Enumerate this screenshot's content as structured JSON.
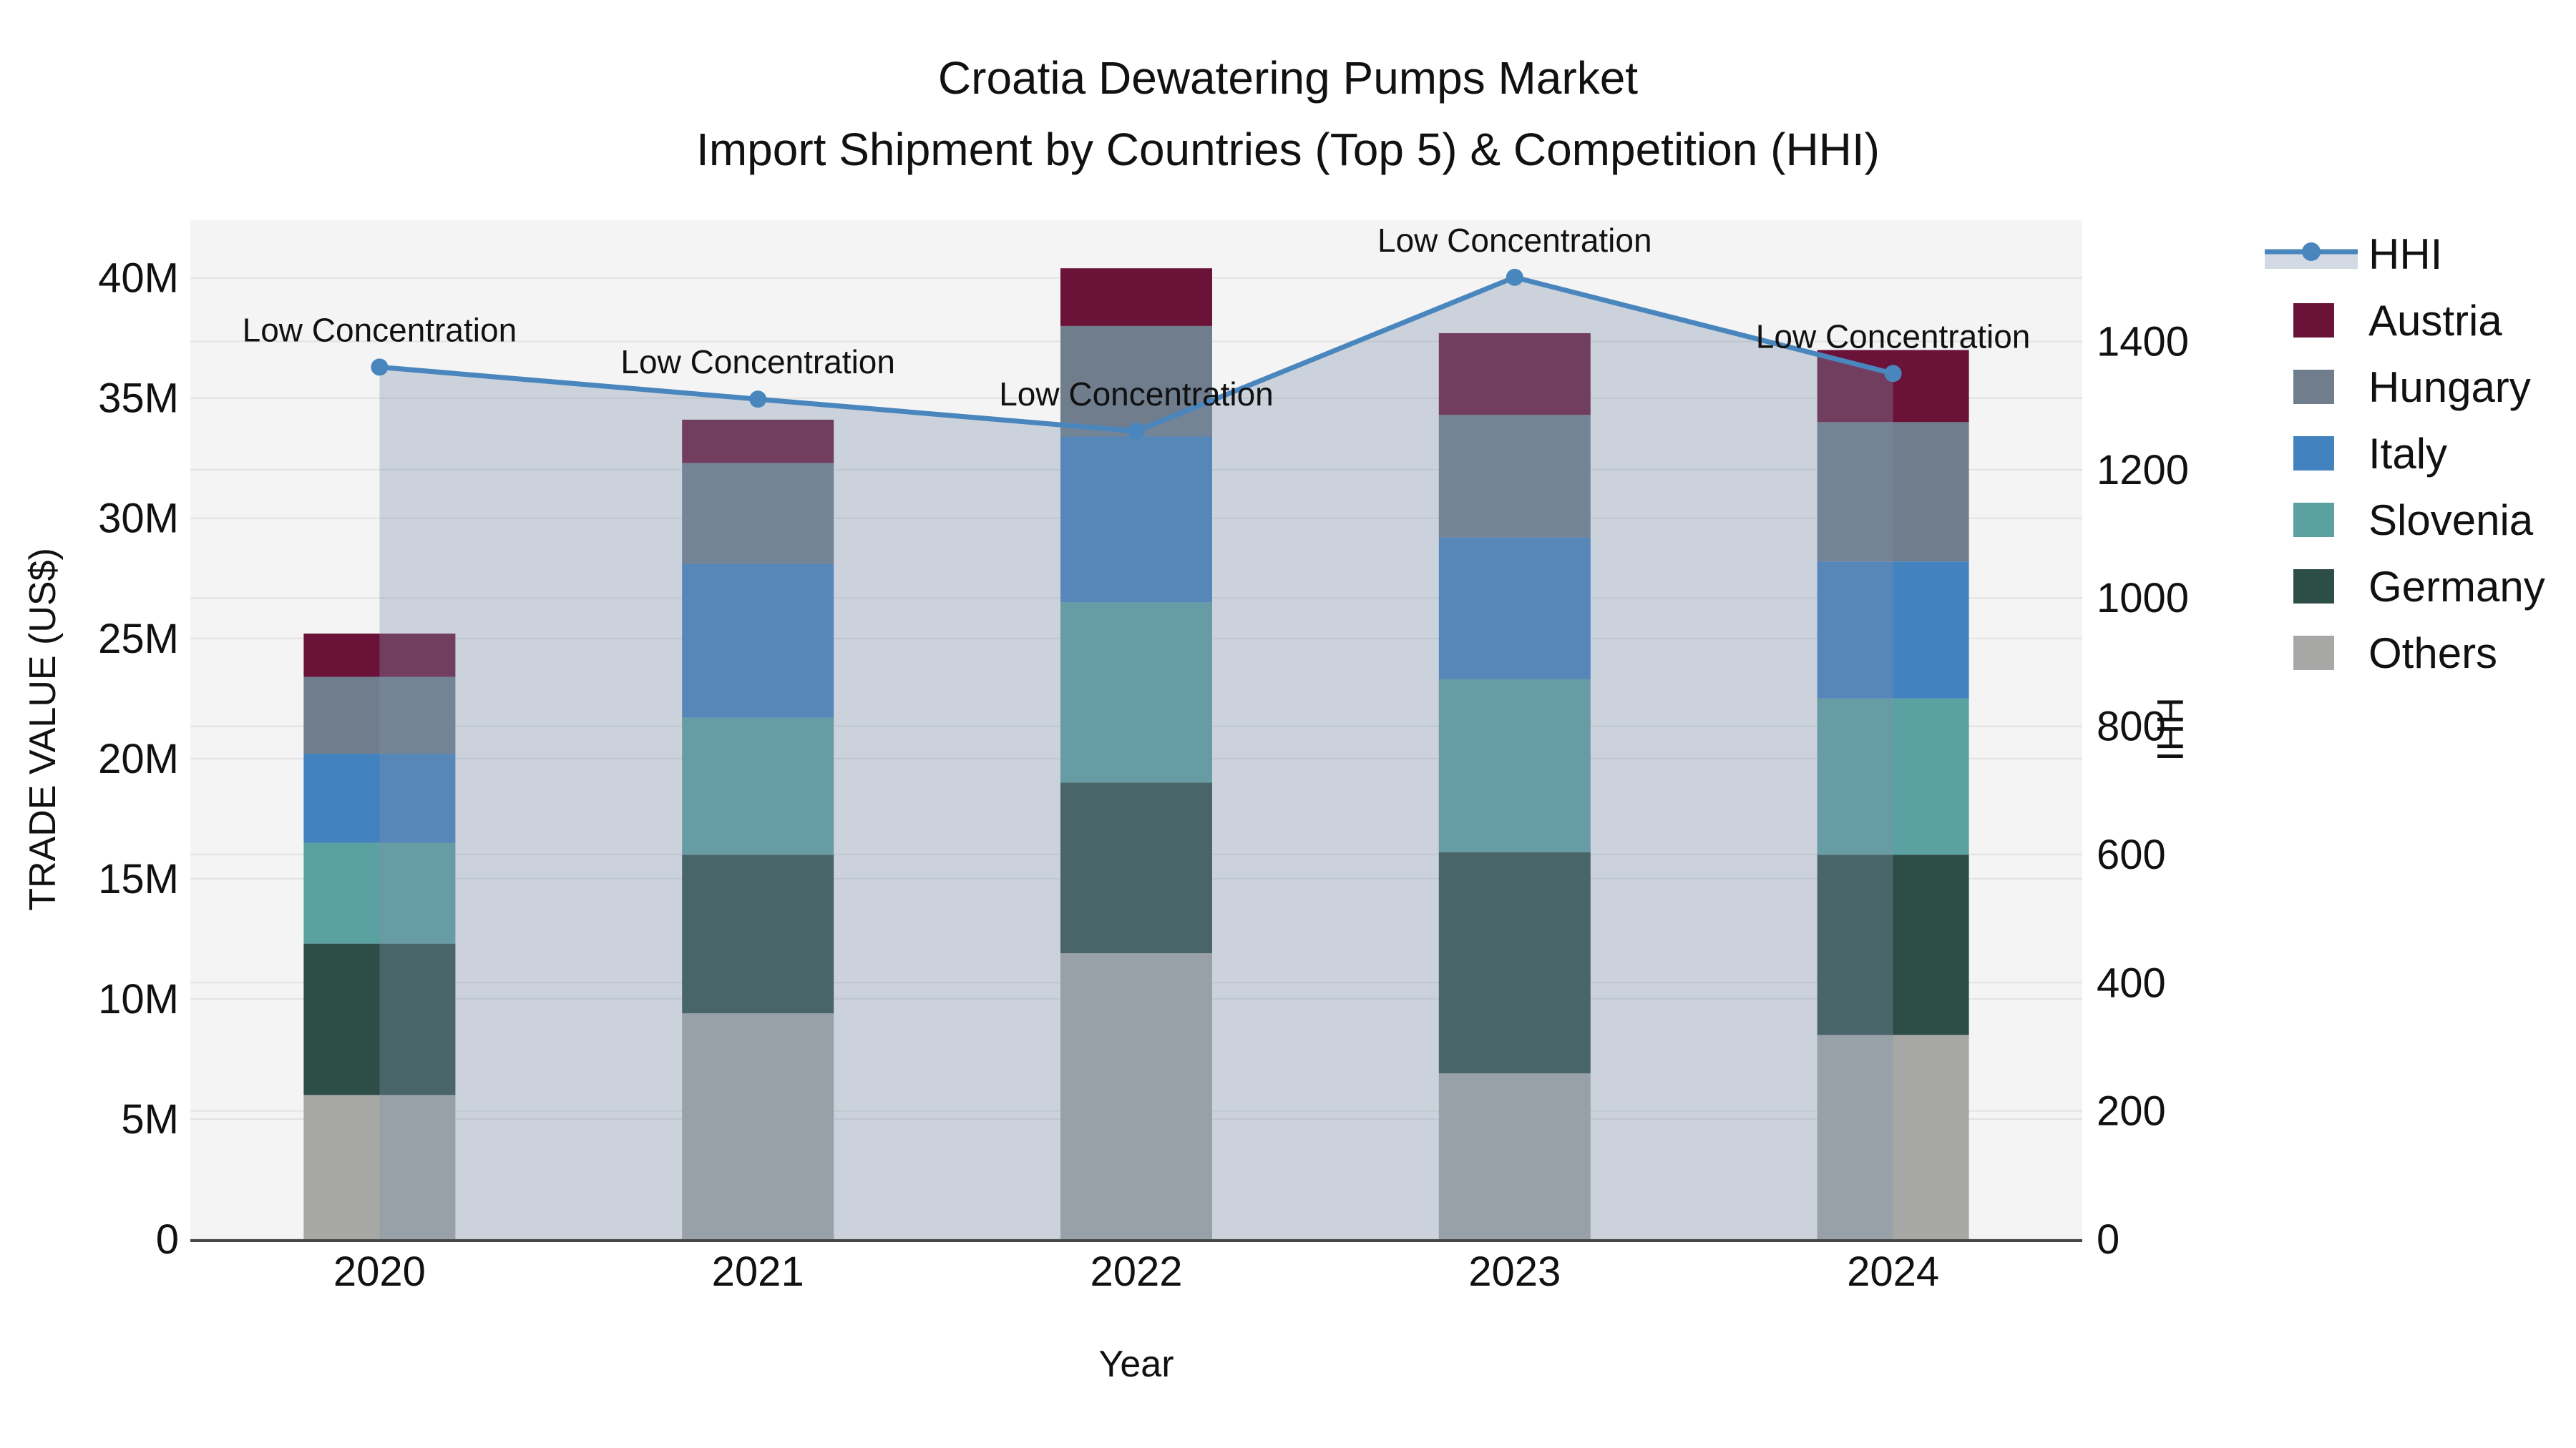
{
  "title": {
    "line1": "Croatia Dewatering Pumps Market",
    "line2": "Import Shipment by Countries (Top 5) & Competition (HHI)"
  },
  "axes": {
    "left": {
      "title": "TRADE VALUE (US$)",
      "tick_labels": [
        "0",
        "5M",
        "10M",
        "15M",
        "20M",
        "25M",
        "30M",
        "35M",
        "40M"
      ],
      "tick_values": [
        0,
        5,
        10,
        15,
        20,
        25,
        30,
        35,
        40
      ]
    },
    "right": {
      "title": "HHI",
      "tick_labels": [
        "0",
        "200",
        "400",
        "600",
        "800",
        "1000",
        "1200",
        "1400"
      ],
      "tick_values": [
        0,
        200,
        400,
        600,
        800,
        1000,
        1200,
        1400
      ]
    },
    "x": {
      "title": "Year",
      "categories": [
        "2020",
        "2021",
        "2022",
        "2023",
        "2024"
      ]
    }
  },
  "legend": {
    "items": [
      {
        "label": "HHI",
        "kind": "line",
        "color": "#4A86BE"
      },
      {
        "label": "Austria",
        "kind": "swatch",
        "color": "#6A1237"
      },
      {
        "label": "Hungary",
        "kind": "swatch",
        "color": "#6F7D8D"
      },
      {
        "label": "Italy",
        "kind": "swatch",
        "color": "#4182BF"
      },
      {
        "label": "Slovenia",
        "kind": "swatch",
        "color": "#5BA1A2"
      },
      {
        "label": "Germany",
        "kind": "swatch",
        "color": "#2D4D47"
      },
      {
        "label": "Others",
        "kind": "swatch",
        "color": "#A7A8A6"
      }
    ]
  },
  "annotations": {
    "text": "Low Concentration",
    "per_point": [
      "Low Concentration",
      "Low Concentration",
      "Low Concentration",
      "Low Concentration",
      "Low Concentration"
    ]
  },
  "colors": {
    "plot_bg": "#F4F4F4",
    "grid": "#E2E2E2",
    "axis_line": "#474747",
    "hhi_line": "#4A86BE",
    "hhi_area_fill": "rgba(125,145,172,0.35)",
    "text": "#111111"
  },
  "chart_data": {
    "type": "bar",
    "subtype": "stacked-bar-with-line-overlay",
    "title": "Croatia Dewatering Pumps Market — Import Shipment by Countries (Top 5) & Competition (HHI)",
    "xlabel": "Year",
    "ylabel_left": "TRADE VALUE (US$)",
    "ylabel_right": "HHI",
    "categories": [
      "2020",
      "2021",
      "2022",
      "2023",
      "2024"
    ],
    "unit": "million US$",
    "stack_order_bottom_to_top": [
      "Others",
      "Germany",
      "Slovenia",
      "Italy",
      "Hungary",
      "Austria"
    ],
    "series": [
      {
        "name": "Austria",
        "color": "#6A1237",
        "values": [
          1.8,
          1.8,
          2.4,
          3.4,
          3.0
        ]
      },
      {
        "name": "Hungary",
        "color": "#6F7D8D",
        "values": [
          3.2,
          4.2,
          4.6,
          5.1,
          5.8
        ]
      },
      {
        "name": "Italy",
        "color": "#4182BF",
        "values": [
          3.7,
          6.4,
          6.9,
          5.9,
          5.7
        ]
      },
      {
        "name": "Slovenia",
        "color": "#5BA1A2",
        "values": [
          4.2,
          5.7,
          7.5,
          7.2,
          6.5
        ]
      },
      {
        "name": "Germany",
        "color": "#2D4D47",
        "values": [
          6.3,
          6.6,
          7.1,
          9.2,
          7.5
        ]
      },
      {
        "name": "Others",
        "color": "#A7A8A6",
        "values": [
          6.0,
          9.4,
          11.9,
          6.9,
          8.5
        ]
      }
    ],
    "bar_totals": [
      25.2,
      34.1,
      40.4,
      37.7,
      37.0
    ],
    "line_series": {
      "name": "HHI",
      "color": "#4A86BE",
      "values": [
        1360,
        1310,
        1260,
        1500,
        1350
      ],
      "area_fill": true
    },
    "ylim_left": [
      0,
      42.4
    ],
    "ylim_right": [
      0,
      1589
    ],
    "grid": true,
    "legend_position": "right"
  }
}
